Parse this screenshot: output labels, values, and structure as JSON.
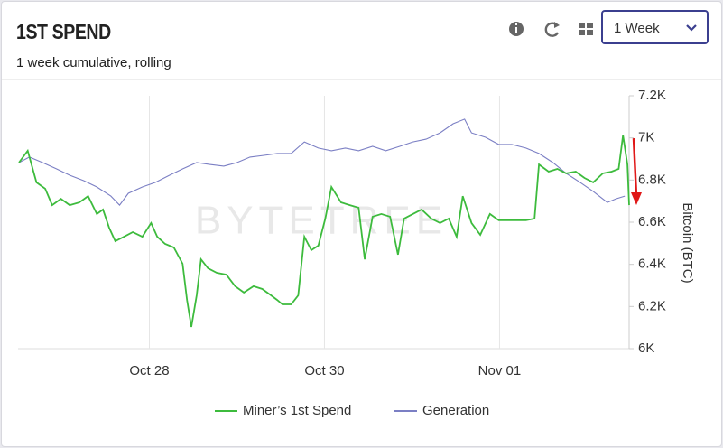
{
  "header": {
    "title": "1ST SPEND",
    "subtitle": "1 week cumulative, rolling",
    "period": "1 Week"
  },
  "chart_data": {
    "type": "line",
    "watermark": "BYTETREE",
    "ylabel": "Bitcoin (BTC)",
    "xlim": [
      26.5,
      33.48
    ],
    "xticks": [
      {
        "value": 28,
        "label": "Oct 28"
      },
      {
        "value": 30,
        "label": "Oct 30"
      },
      {
        "value": 32,
        "label": "Nov 01"
      }
    ],
    "ylim": [
      6000,
      7200
    ],
    "yticks": [
      {
        "value": 6000,
        "label": "6K"
      },
      {
        "value": 6200,
        "label": "6.2K"
      },
      {
        "value": 6400,
        "label": "6.4K"
      },
      {
        "value": 6600,
        "label": "6.6K"
      },
      {
        "value": 6800,
        "label": "6.8K"
      },
      {
        "value": 7000,
        "label": "7K"
      },
      {
        "value": 7200,
        "label": "7.2K"
      }
    ],
    "grid": "x",
    "series": [
      {
        "name": "Miner’s 1st Spend",
        "color": "#3dbb3d",
        "x": [
          26.51,
          26.61,
          26.71,
          26.81,
          26.89,
          26.99,
          27.09,
          27.2,
          27.3,
          27.4,
          27.47,
          27.54,
          27.61,
          27.71,
          27.81,
          27.92,
          28.02,
          28.09,
          28.18,
          28.28,
          28.38,
          28.43,
          28.48,
          28.54,
          28.59,
          28.67,
          28.77,
          28.88,
          28.98,
          29.08,
          29.19,
          29.29,
          29.39,
          29.46,
          29.52,
          29.62,
          29.7,
          29.77,
          29.85,
          29.93,
          30.01,
          30.08,
          30.19,
          30.29,
          30.39,
          30.46,
          30.55,
          30.65,
          30.75,
          30.84,
          30.91,
          31.01,
          31.11,
          31.22,
          31.32,
          31.42,
          31.51,
          31.58,
          31.68,
          31.78,
          31.89,
          31.99,
          32.09,
          32.2,
          32.3,
          32.4,
          32.45,
          32.56,
          32.66,
          32.76,
          32.87,
          32.97,
          33.07,
          33.18,
          33.28,
          33.36,
          33.41,
          33.46,
          33.48
        ],
        "values": [
          6883,
          6939,
          6789,
          6759,
          6681,
          6711,
          6681,
          6694,
          6724,
          6639,
          6660,
          6574,
          6510,
          6531,
          6553,
          6531,
          6596,
          6531,
          6497,
          6480,
          6403,
          6231,
          6103,
          6253,
          6424,
          6381,
          6360,
          6351,
          6296,
          6266,
          6296,
          6283,
          6253,
          6231,
          6210,
          6210,
          6253,
          6531,
          6467,
          6489,
          6617,
          6767,
          6694,
          6681,
          6669,
          6424,
          6626,
          6639,
          6626,
          6446,
          6617,
          6639,
          6660,
          6617,
          6596,
          6617,
          6531,
          6724,
          6596,
          6540,
          6639,
          6609,
          6609,
          6609,
          6609,
          6617,
          6874,
          6840,
          6853,
          6832,
          6840,
          6810,
          6789,
          6832,
          6840,
          6853,
          7012,
          6874,
          6681
        ]
      },
      {
        "name": "Generation",
        "color": "#7b7fc4",
        "x": [
          26.51,
          26.63,
          26.78,
          26.94,
          27.09,
          27.25,
          27.4,
          27.56,
          27.66,
          27.76,
          27.92,
          28.07,
          28.23,
          28.38,
          28.54,
          28.69,
          28.85,
          29.0,
          29.15,
          29.31,
          29.46,
          29.62,
          29.77,
          29.93,
          30.08,
          30.24,
          30.39,
          30.55,
          30.7,
          30.86,
          31.01,
          31.16,
          31.32,
          31.47,
          31.6,
          31.68,
          31.84,
          31.99,
          32.14,
          32.3,
          32.45,
          32.61,
          32.76,
          32.92,
          33.07,
          33.23,
          33.33,
          33.43
        ],
        "values": [
          6883,
          6909,
          6883,
          6853,
          6823,
          6797,
          6767,
          6724,
          6681,
          6737,
          6767,
          6789,
          6823,
          6853,
          6883,
          6874,
          6866,
          6883,
          6909,
          6917,
          6926,
          6926,
          6981,
          6952,
          6939,
          6952,
          6939,
          6960,
          6939,
          6960,
          6981,
          6994,
          7024,
          7067,
          7089,
          7024,
          7003,
          6969,
          6969,
          6952,
          6926,
          6883,
          6832,
          6789,
          6746,
          6694,
          6711,
          6724
        ]
      }
    ]
  }
}
